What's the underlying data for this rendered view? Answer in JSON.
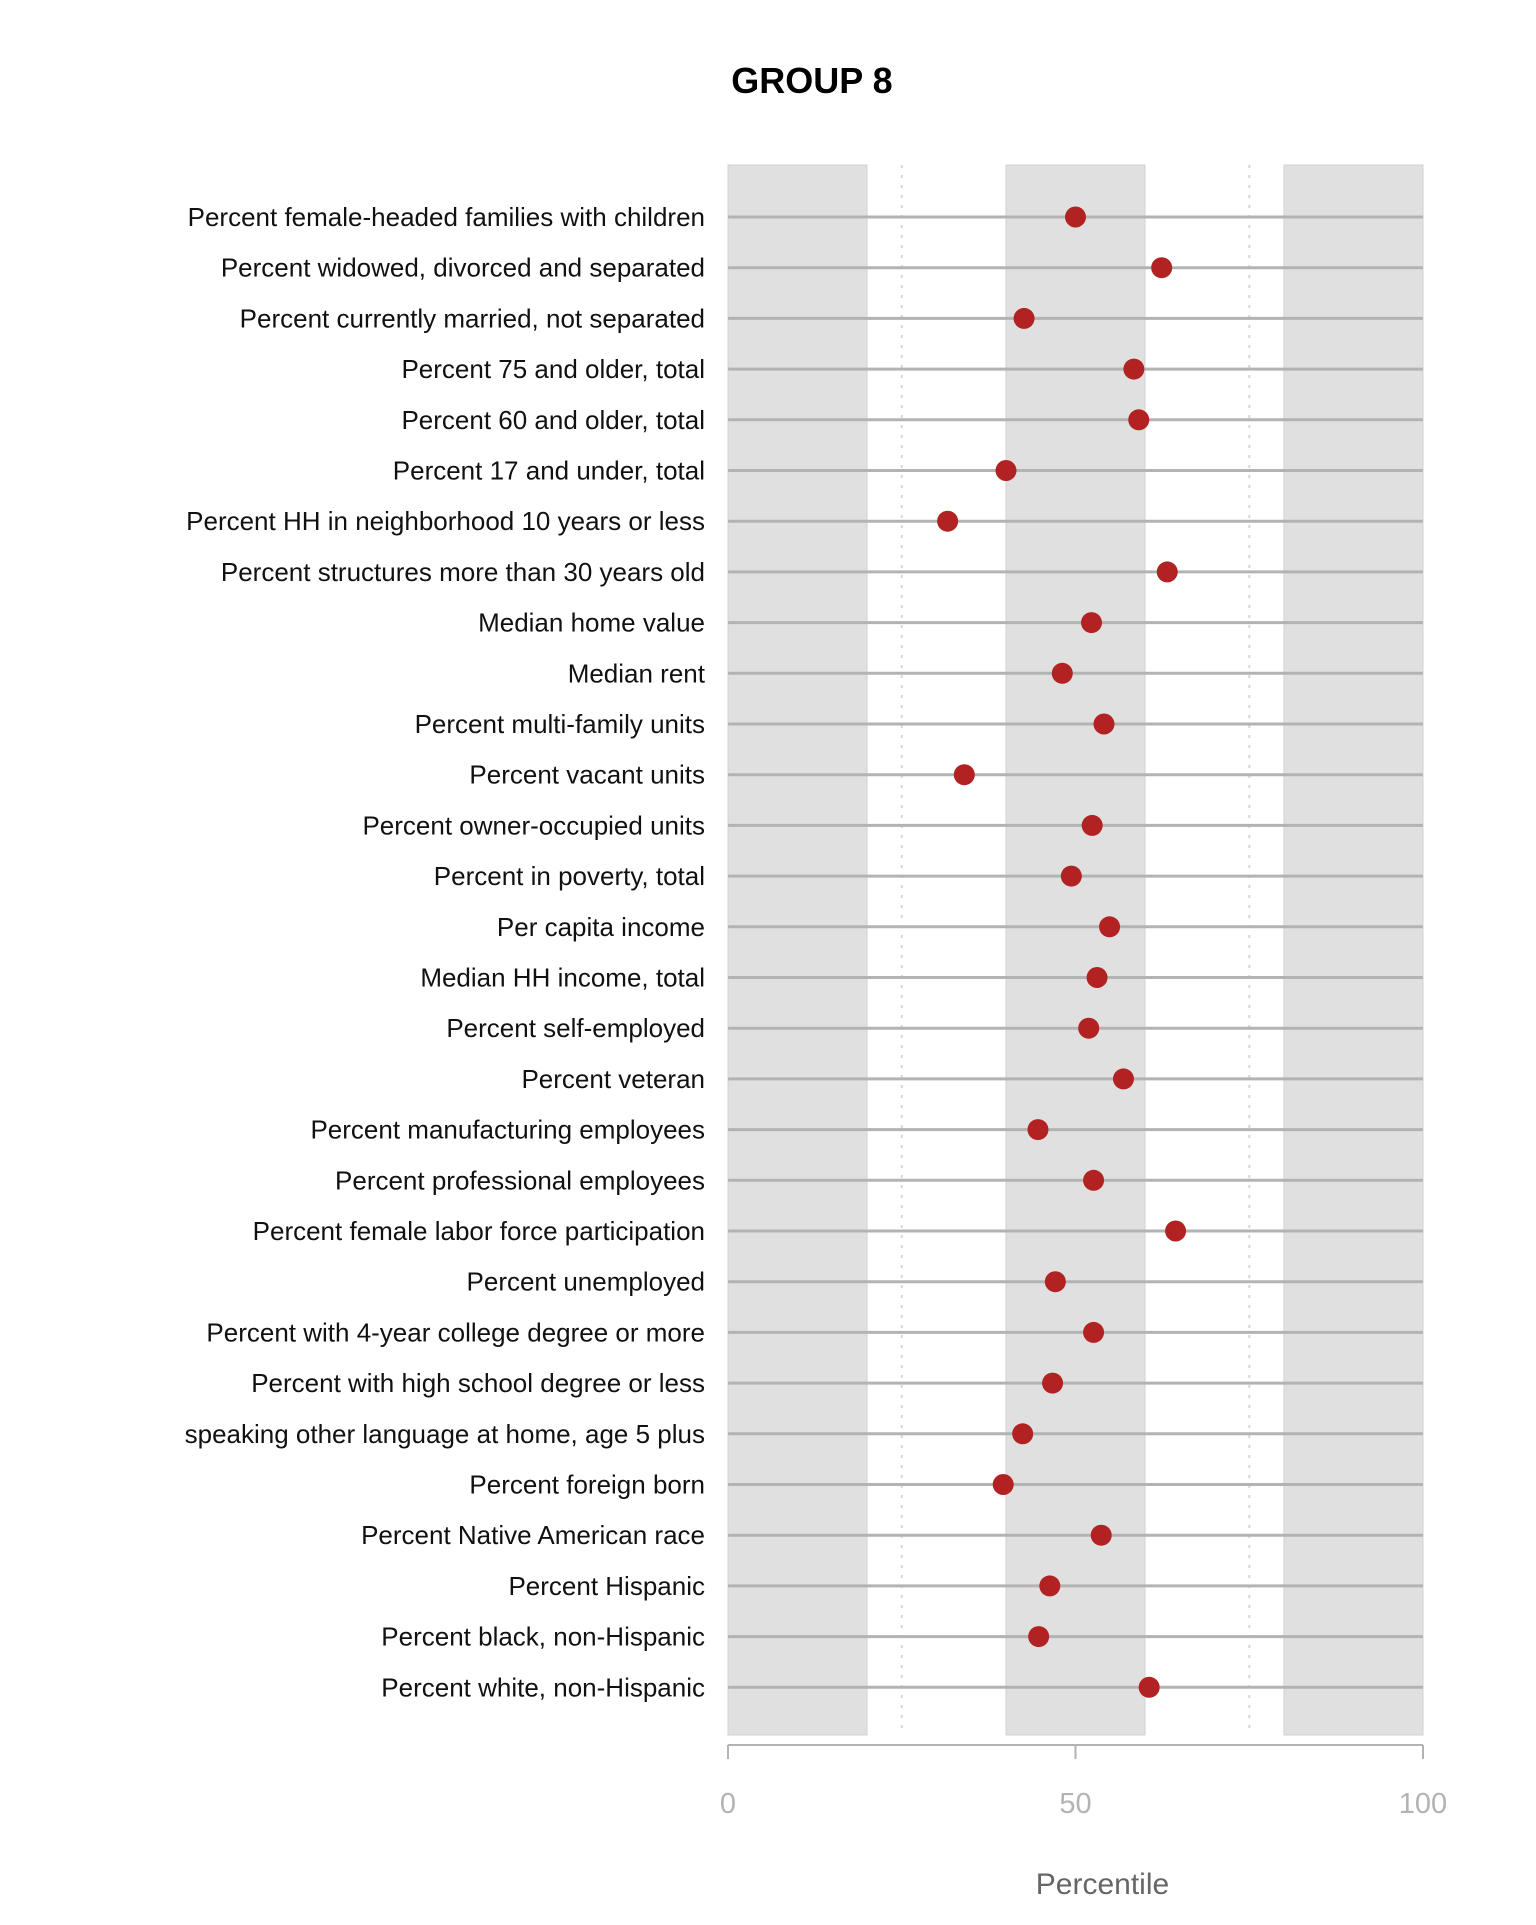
{
  "chart_data": {
    "type": "scatter",
    "title": "GROUP 8",
    "xlabel": "Percentile",
    "ylabel": "",
    "xlim": [
      0,
      100
    ],
    "xticks": [
      "0",
      "50",
      "100"
    ],
    "xtick_values": [
      0,
      50,
      100
    ],
    "shaded_bands": [
      [
        0,
        20
      ],
      [
        40,
        60
      ],
      [
        80,
        100
      ]
    ],
    "dotted_gridlines": [
      25,
      75
    ],
    "point_color": "#b22222",
    "band_color": "#e0e0e0",
    "line_color": "#b3b3b3",
    "grid": true,
    "categories": [
      "Percent female-headed families with children",
      "Percent widowed, divorced and separated",
      "Percent currently married, not separated",
      "Percent 75 and older, total",
      "Percent 60 and older, total",
      "Percent 17 and under, total",
      "Percent HH in neighborhood 10 years or less",
      "Percent structures more than 30 years old",
      "Median home value",
      "Median rent",
      "Percent multi-family units",
      "Percent vacant units",
      "Percent owner-occupied units",
      "Percent in poverty, total",
      "Per capita income",
      "Median HH income, total",
      "Percent self-employed",
      "Percent veteran",
      "Percent manufacturing employees",
      "Percent professional employees",
      "Percent female labor force participation",
      "Percent unemployed",
      "Percent with 4-year college degree or more",
      "Percent with high school degree or less",
      "speaking other language at home, age 5 plus",
      "Percent foreign born",
      "Percent Native American race",
      "Percent Hispanic",
      "Percent black, non-Hispanic",
      "Percent white, non-Hispanic"
    ],
    "values": [
      50.0,
      62.4,
      42.6,
      58.4,
      59.1,
      40.0,
      31.6,
      63.2,
      52.3,
      48.1,
      54.1,
      34.0,
      52.4,
      49.4,
      54.9,
      53.1,
      51.9,
      56.9,
      44.6,
      52.6,
      64.4,
      47.1,
      52.6,
      46.7,
      42.4,
      39.6,
      53.7,
      46.3,
      44.7,
      60.6
    ]
  }
}
